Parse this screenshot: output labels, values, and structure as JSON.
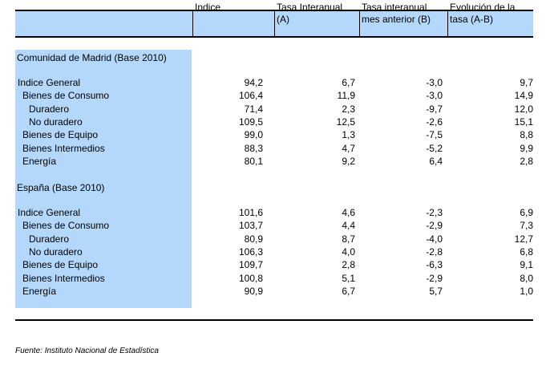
{
  "header": {
    "col_indice": "Indice",
    "col_tasa_interanual": "Tasa Interanual\n(A)",
    "col_tasa_mes_anterior": "Tasa interanual\nmes anterior (B)",
    "col_evolucion": "Evolución de la\ntasa (A-B)"
  },
  "sections": [
    {
      "title": "Comunidad de Madrid (Base 2010)",
      "rows": [
        {
          "label": "Indice General",
          "level": 0,
          "values": [
            "94,2",
            "6,7",
            "-3,0",
            "9,7"
          ]
        },
        {
          "label": "Bienes de Consumo",
          "level": 1,
          "values": [
            "106,4",
            "11,9",
            "-3,0",
            "14,9"
          ]
        },
        {
          "label": "Duradero",
          "level": 2,
          "values": [
            "71,4",
            "2,3",
            "-9,7",
            "12,0"
          ]
        },
        {
          "label": "No duradero",
          "level": 2,
          "values": [
            "109,5",
            "12,5",
            "-2,6",
            "15,1"
          ]
        },
        {
          "label": "Bienes de Equipo",
          "level": 1,
          "values": [
            "99,0",
            "1,3",
            "-7,5",
            "8,8"
          ]
        },
        {
          "label": "Bienes Intermedios",
          "level": 1,
          "values": [
            "88,3",
            "4,7",
            "-5,2",
            "9,9"
          ]
        },
        {
          "label": "Energía",
          "level": 1,
          "values": [
            "80,1",
            "9,2",
            "6,4",
            "2,8"
          ]
        }
      ]
    },
    {
      "title": "España (Base 2010)",
      "rows": [
        {
          "label": "Indice General",
          "level": 0,
          "values": [
            "101,6",
            "4,6",
            "-2,3",
            "6,9"
          ]
        },
        {
          "label": "Bienes de Consumo",
          "level": 1,
          "values": [
            "103,7",
            "4,4",
            "-2,9",
            "7,3"
          ]
        },
        {
          "label": "Duradero",
          "level": 2,
          "values": [
            "80,9",
            "8,7",
            "-4,0",
            "12,7"
          ]
        },
        {
          "label": "No duradero",
          "level": 2,
          "values": [
            "106,3",
            "4,0",
            "-2,8",
            "6,8"
          ]
        },
        {
          "label": "Bienes de Equipo",
          "level": 1,
          "values": [
            "109,7",
            "2,8",
            "-6,3",
            "9,1"
          ]
        },
        {
          "label": "Bienes Intermedios",
          "level": 1,
          "values": [
            "100,8",
            "5,1",
            "-2,9",
            "8,0"
          ]
        },
        {
          "label": "Energía",
          "level": 1,
          "values": [
            "90,9",
            "6,7",
            "5,7",
            "1,0"
          ]
        }
      ]
    }
  ],
  "footer": {
    "source": "Fuente: Instituto Nacional de Estadística"
  },
  "colors": {
    "highlight": "#b4d8fb",
    "text": "#000000"
  }
}
